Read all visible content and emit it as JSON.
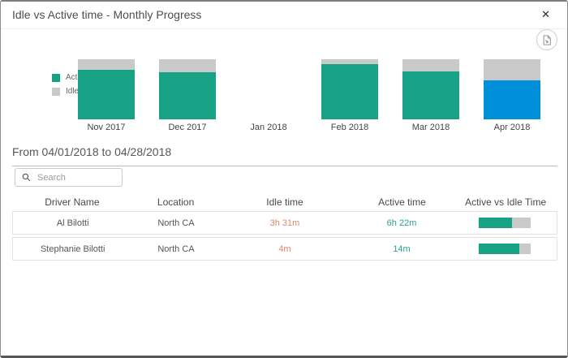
{
  "dialog": {
    "title": "Idle vs Active time - Monthly Progress",
    "close_glyph": "✕"
  },
  "icons": {
    "close": "close-icon",
    "export": "export-report-icon",
    "search": "search-icon"
  },
  "colors": {
    "active": "#17A286",
    "idle": "#C9C9C9",
    "selected": "#0090DA",
    "idle_text": "#E08767",
    "active_text": "#2BA18D"
  },
  "chart_data": {
    "type": "bar",
    "stacked": true,
    "unit": "percent",
    "categories": [
      "Nov 2017",
      "Dec 2017",
      "Jan 2018",
      "Feb 2018",
      "Mar 2018",
      "Apr 2018"
    ],
    "series": [
      {
        "name": "Active Time",
        "color": "#17A286",
        "values": [
          82,
          78,
          null,
          92,
          80,
          65
        ]
      },
      {
        "name": "Idle Time",
        "color": "#C9C9C9",
        "values": [
          18,
          22,
          null,
          8,
          20,
          35
        ]
      }
    ],
    "selected_category": "Apr 2018",
    "selected_color": "#0090DA",
    "legend_position": "left",
    "ylim": [
      0,
      100
    ],
    "axes_hidden": true
  },
  "date_range": "From 04/01/2018 to 04/28/2018",
  "search": {
    "placeholder": "Search",
    "value": ""
  },
  "table": {
    "columns": [
      "Driver Name",
      "Location",
      "Idle time",
      "Active time",
      "Active vs Idle Time"
    ],
    "rows": [
      {
        "driver": "Al Bilotti",
        "location": "North CA",
        "idle": "3h 31m",
        "active": "6h 22m",
        "active_pct": 64
      },
      {
        "driver": "Stephanie Bilotti",
        "location": "North CA",
        "idle": "4m",
        "active": "14m",
        "active_pct": 78
      }
    ]
  }
}
